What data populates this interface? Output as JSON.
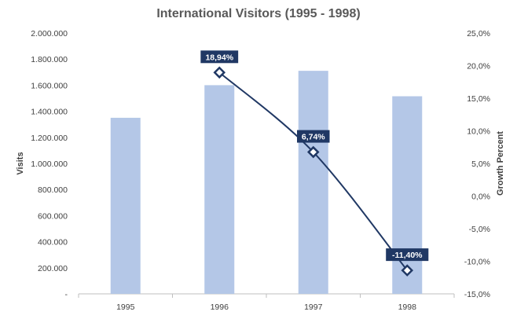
{
  "chart_data": {
    "type": "bar",
    "title": "International Visitors (1995 - 1998)",
    "categories": [
      "1995",
      "1996",
      "1997",
      "1998"
    ],
    "y_left": {
      "label": "Visits",
      "range": [
        0,
        2000000
      ],
      "ticks": [
        "-",
        "200.000",
        "400.000",
        "600.000",
        "800.000",
        "1.000.000",
        "1.200.000",
        "1.400.000",
        "1.600.000",
        "1.800.000",
        "2.000.000"
      ]
    },
    "y_right": {
      "label": "Growth Percent",
      "range": [
        -15,
        25
      ],
      "ticks": [
        "-15,0%",
        "-10,0%",
        "-5,0%",
        "0,0%",
        "5,0%",
        "10,0%",
        "15,0%",
        "20,0%",
        "25,0%"
      ]
    },
    "series": [
      {
        "type": "bar",
        "axis": "left",
        "color": "#b4c7e7",
        "values": [
          1350000,
          1600000,
          1710000,
          1515000
        ]
      },
      {
        "type": "line",
        "axis": "right",
        "color": "#203864",
        "marker": "diamond",
        "points": [
          {
            "category": "1996",
            "value": 18.94,
            "label": "18,94%"
          },
          {
            "category": "1997",
            "value": 6.74,
            "label": "6,74%"
          },
          {
            "category": "1998",
            "value": -11.4,
            "label": "-11,40%"
          }
        ]
      }
    ],
    "grid": false,
    "legend": "none"
  }
}
